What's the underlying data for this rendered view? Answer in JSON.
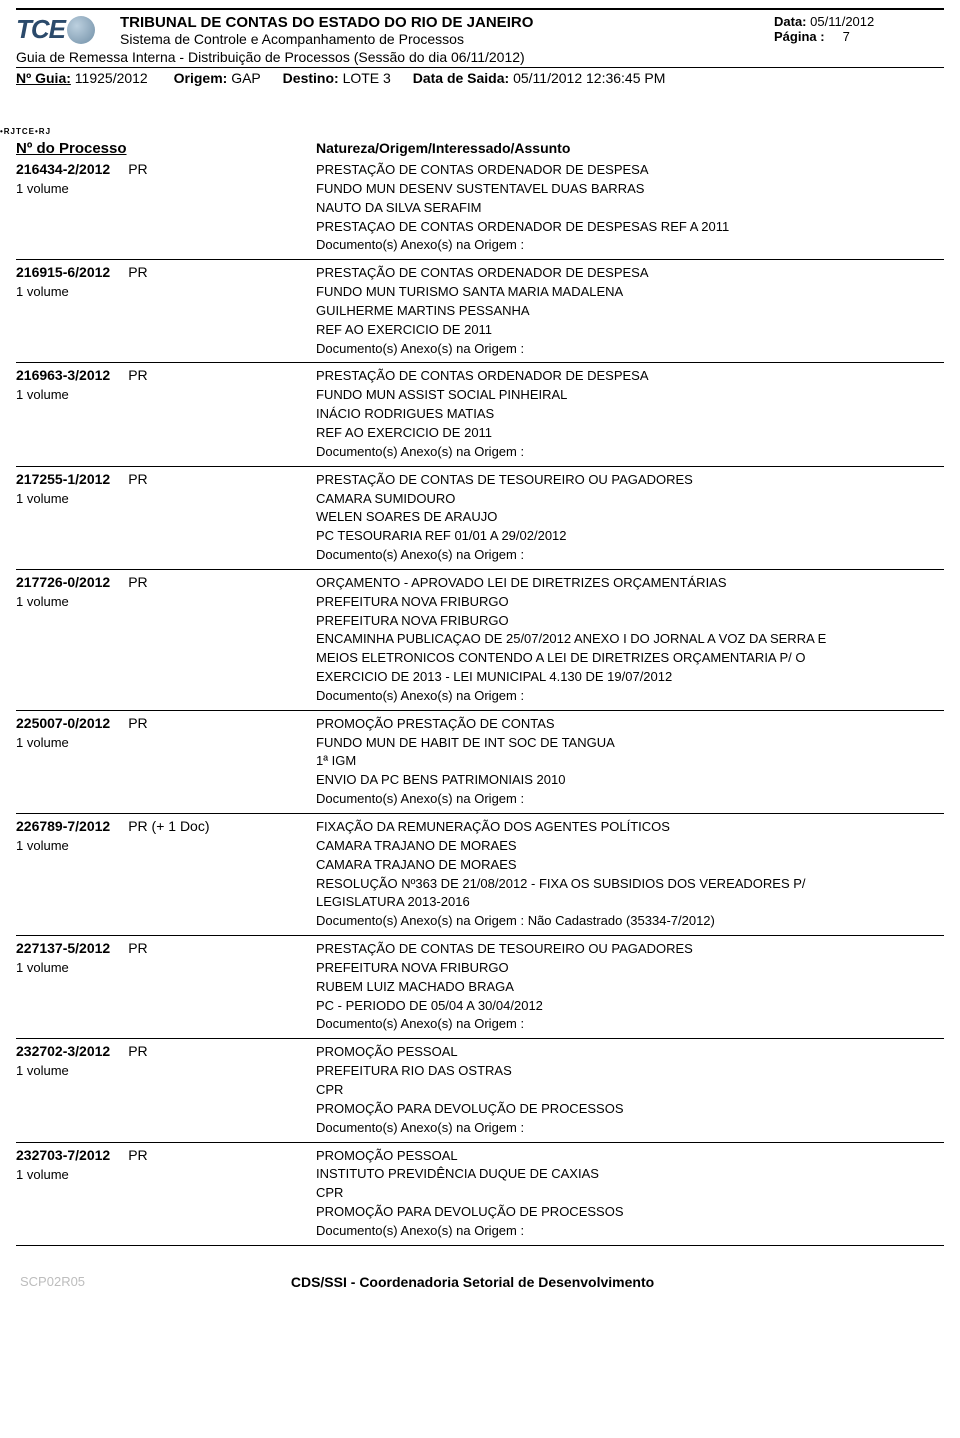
{
  "colors": {
    "text": "#000000",
    "background": "#ffffff",
    "logo_text": "#2b4a6b",
    "footer_code": "#bdbdbd",
    "rule": "#000000"
  },
  "logo": {
    "text": "TCE",
    "rj_badge": "RJ"
  },
  "header": {
    "org": "TRIBUNAL DE CONTAS DO ESTADO DO RIO DE JANEIRO",
    "system": "Sistema de Controle e Acompanhamento de Processos",
    "date_label": "Data:",
    "date_value": "05/11/2012",
    "page_label": "Página :",
    "page_value": "7",
    "session_line": "Guia de Remessa Interna - Distribuição de Processos (Sessão do dia 06/11/2012)",
    "guia_label": "Nº Guia:",
    "guia_value": "11925/2012",
    "origem_label": "Origem:",
    "origem_value": "GAP",
    "destino_label": "Destino:",
    "destino_value": "LOTE 3",
    "saida_label": "Data de Saida:",
    "saida_value": "05/11/2012 12:36:45 PM",
    "barcode_tag": "TCE•RJ"
  },
  "cols": {
    "left": "Nº do Processo",
    "right": "Natureza/Origem/Interessado/Assunto"
  },
  "entries": [
    {
      "proc": "216434-2/2012",
      "tag": "PR",
      "volume": "1 volume",
      "lines": [
        "PRESTAÇÃO DE CONTAS ORDENADOR DE DESPESA",
        "FUNDO MUN DESENV SUSTENTAVEL DUAS BARRAS",
        "NAUTO DA SILVA SERAFIM",
        "PRESTAÇAO DE CONTAS ORDENADOR DE DESPESAS REF A 2011",
        "Documento(s) Anexo(s) na Origem :"
      ]
    },
    {
      "proc": "216915-6/2012",
      "tag": "PR",
      "volume": "1 volume",
      "lines": [
        "PRESTAÇÃO DE CONTAS ORDENADOR DE DESPESA",
        "FUNDO MUN TURISMO SANTA MARIA MADALENA",
        "GUILHERME MARTINS PESSANHA",
        "REF AO EXERCICIO DE 2011",
        "Documento(s) Anexo(s) na Origem :"
      ]
    },
    {
      "proc": "216963-3/2012",
      "tag": "PR",
      "volume": "1 volume",
      "lines": [
        "PRESTAÇÃO DE CONTAS ORDENADOR DE DESPESA",
        "FUNDO MUN ASSIST SOCIAL PINHEIRAL",
        "INÁCIO RODRIGUES MATIAS",
        "REF AO EXERCICIO DE 2011",
        "Documento(s) Anexo(s) na Origem :"
      ]
    },
    {
      "proc": "217255-1/2012",
      "tag": "PR",
      "volume": "1 volume",
      "lines": [
        "PRESTAÇÃO DE CONTAS DE TESOUREIRO OU PAGADORES",
        "CAMARA SUMIDOURO",
        "WELEN SOARES DE ARAUJO",
        "PC TESOURARIA REF 01/01 A 29/02/2012",
        "Documento(s) Anexo(s) na Origem :"
      ]
    },
    {
      "proc": "217726-0/2012",
      "tag": "PR",
      "volume": "1 volume",
      "lines": [
        "ORÇAMENTO - APROVADO LEI DE DIRETRIZES ORÇAMENTÁRIAS",
        "PREFEITURA NOVA FRIBURGO",
        "PREFEITURA NOVA FRIBURGO",
        "ENCAMINHA PUBLICAÇAO DE 25/07/2012 ANEXO I DO JORNAL A VOZ DA SERRA E",
        "MEIOS ELETRONICOS CONTENDO A LEI DE DIRETRIZES ORÇAMENTARIA P/ O",
        "EXERCICIO DE 2013 - LEI MUNICIPAL 4.130 DE 19/07/2012",
        "Documento(s) Anexo(s) na Origem :"
      ]
    },
    {
      "proc": "225007-0/2012",
      "tag": "PR",
      "volume": "1 volume",
      "lines": [
        "PROMOÇÃO PRESTAÇÃO DE CONTAS",
        "FUNDO MUN DE HABIT DE INT SOC DE TANGUA",
        "1ª IGM",
        "ENVIO DA PC BENS PATRIMONIAIS 2010",
        "Documento(s) Anexo(s) na Origem :"
      ]
    },
    {
      "proc": "226789-7/2012",
      "tag": "PR (+ 1 Doc)",
      "volume": "1 volume",
      "lines": [
        "FIXAÇÃO DA REMUNERAÇÃO DOS AGENTES POLÍTICOS",
        "CAMARA TRAJANO DE MORAES",
        "CAMARA TRAJANO DE MORAES",
        "RESOLUÇÃO Nº363 DE 21/08/2012 - FIXA OS SUBSIDIOS DOS VEREADORES P/",
        "LEGISLATURA 2013-2016",
        "Documento(s) Anexo(s) na Origem :   Não Cadastrado (35334-7/2012)"
      ]
    },
    {
      "proc": "227137-5/2012",
      "tag": "PR",
      "volume": "1 volume",
      "lines": [
        "PRESTAÇÃO DE CONTAS DE TESOUREIRO OU PAGADORES",
        "PREFEITURA NOVA FRIBURGO",
        "RUBEM LUIZ MACHADO BRAGA",
        "PC - PERIODO DE 05/04 A 30/04/2012",
        "Documento(s) Anexo(s) na Origem :"
      ]
    },
    {
      "proc": "232702-3/2012",
      "tag": "PR",
      "volume": "1 volume",
      "lines": [
        "PROMOÇÃO PESSOAL",
        "PREFEITURA RIO DAS OSTRAS",
        "CPR",
        "PROMOÇÃO PARA DEVOLUÇÃO DE PROCESSOS",
        "Documento(s) Anexo(s) na Origem :"
      ]
    },
    {
      "proc": "232703-7/2012",
      "tag": "PR",
      "volume": "1 volume",
      "lines": [
        "PROMOÇÃO PESSOAL",
        "INSTITUTO PREVIDÊNCIA DUQUE DE CAXIAS",
        "CPR",
        "PROMOÇÃO PARA DEVOLUÇÃO DE PROCESSOS",
        "Documento(s) Anexo(s) na Origem :"
      ]
    }
  ],
  "footer": {
    "code": "SCP02R05",
    "center": "CDS/SSI - Coordenadoria Setorial de Desenvolvimento"
  }
}
